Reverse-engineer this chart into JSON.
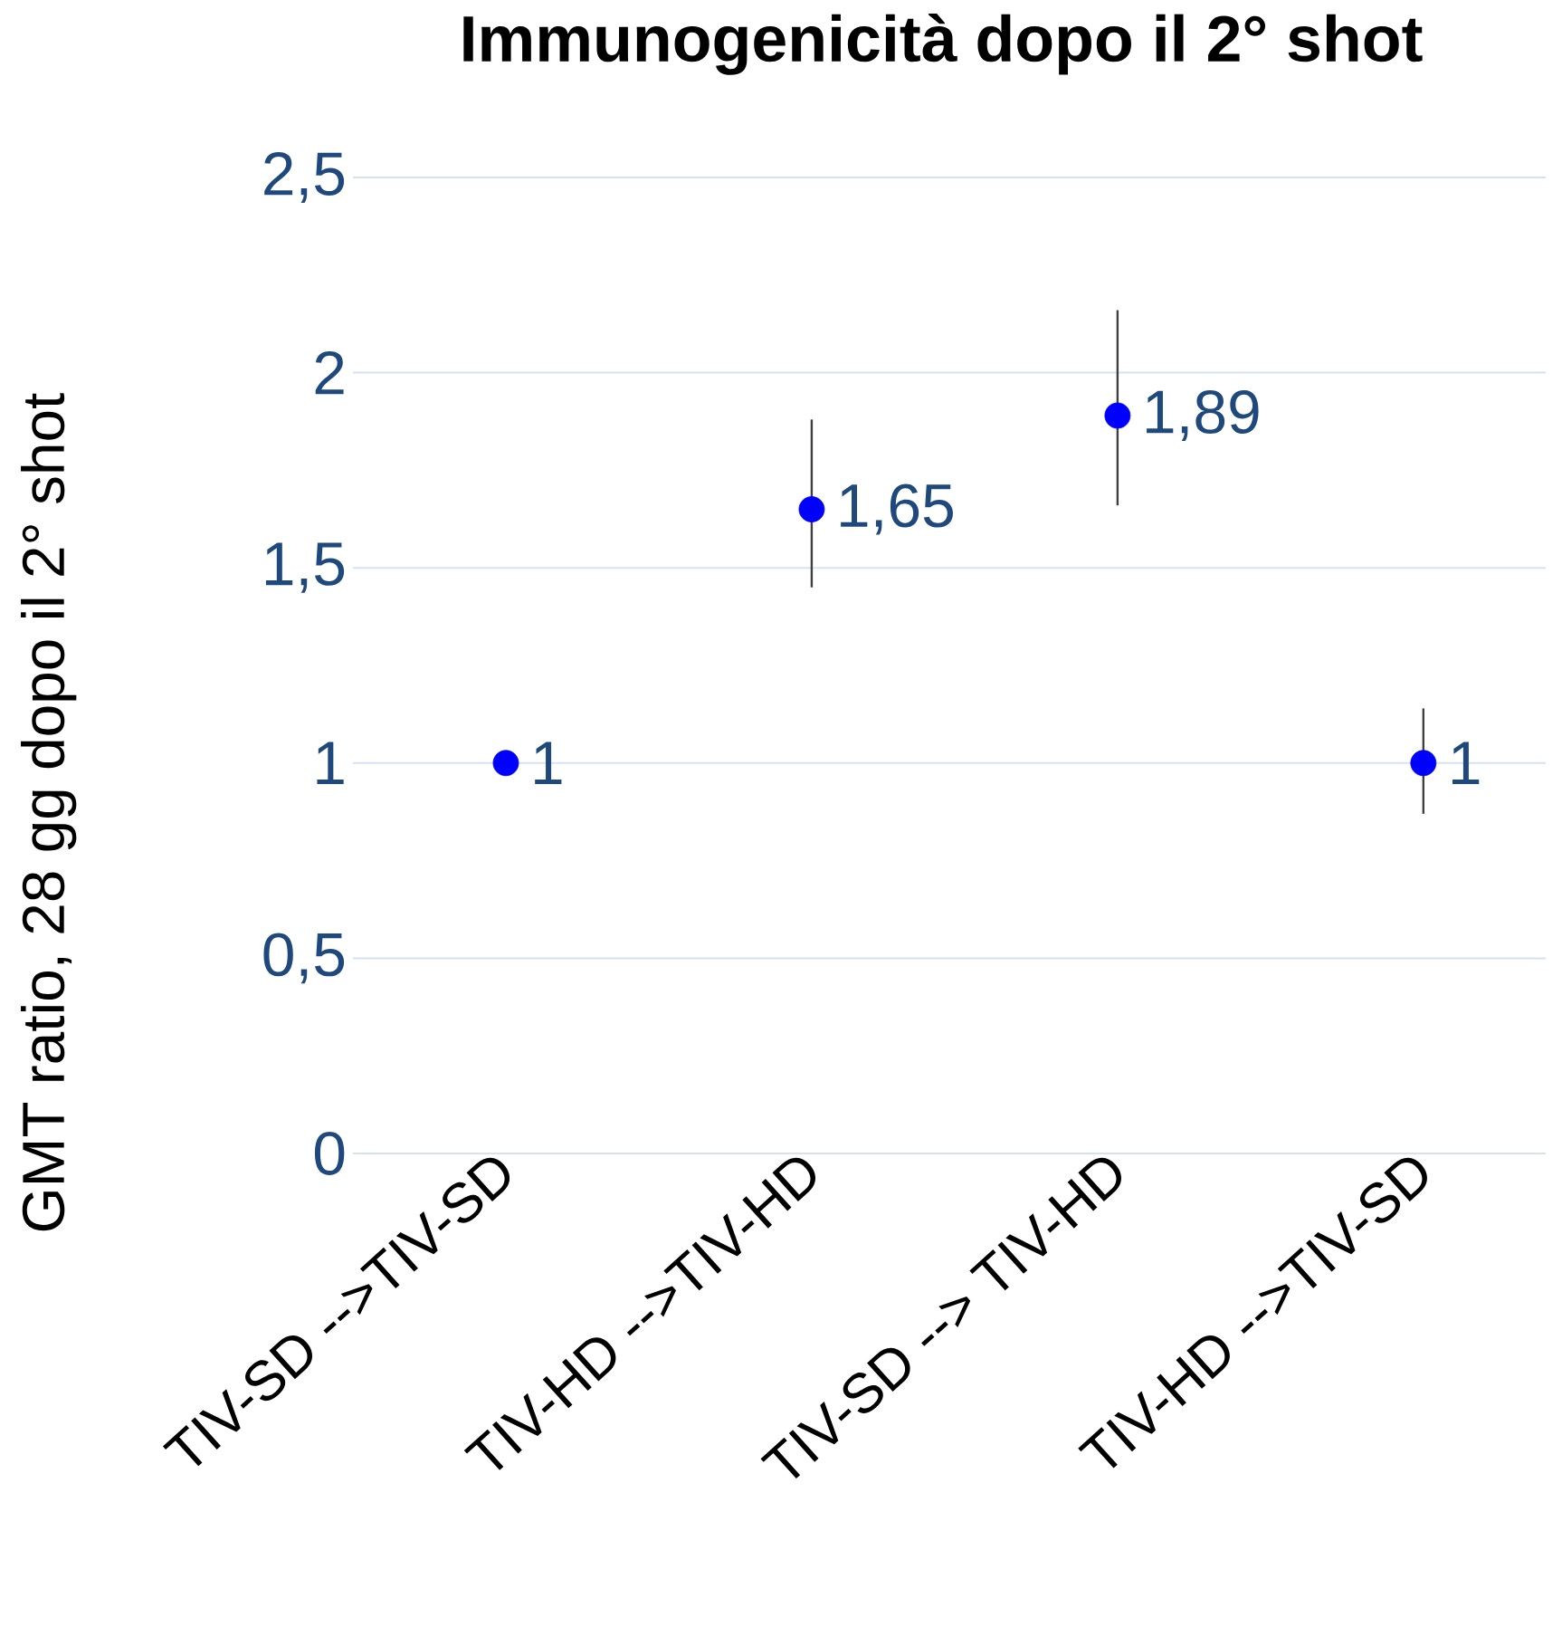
{
  "chart_data": {
    "type": "scatter",
    "title": "Immunogenicità dopo il 2° shot",
    "ylabel": "GMT ratio, 28 gg dopo il 2° shot",
    "categories": [
      "TIV-SD -->TIV-SD",
      "TIV-HD -->TIV-HD",
      "TIV-SD --> TIV-HD",
      "TIV-HD -->TIV-SD"
    ],
    "values": [
      1,
      1.65,
      1.89,
      1
    ],
    "value_labels": [
      "1",
      "1,65",
      "1,89",
      "1"
    ],
    "errors": [
      null,
      [
        1.45,
        1.88
      ],
      [
        1.66,
        2.16
      ],
      [
        0.87,
        1.14
      ]
    ],
    "color": "#0000ff",
    "marker": "circle",
    "grid": "y",
    "ylim": [
      0,
      2.5
    ],
    "yticks": [
      0,
      {
        "value": 0.5,
        "label": "0,5"
      },
      1,
      {
        "value": 1.5,
        "label": "1,5"
      },
      2,
      {
        "value": 2.5,
        "label": "2,5"
      }
    ]
  }
}
